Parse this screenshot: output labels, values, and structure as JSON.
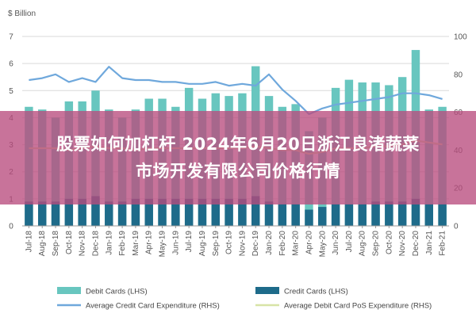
{
  "overlay": {
    "line1": "股票如何加杠杆 2024年6月20日浙江良渚蔬菜",
    "line2": "市场开发有限公司价格行情"
  },
  "colors": {
    "debit": "#68c6bf",
    "credit": "#1e6b8a",
    "avg_credit": "#6fa8dc",
    "avg_debit": "#d8e4a6",
    "grid": "#d9d9d9"
  },
  "chart_data": {
    "type": "bar",
    "title": "",
    "unit_left": "$ Billion",
    "ylim_left": [
      0,
      7
    ],
    "yticks_left": [
      0,
      1,
      2,
      3,
      4,
      5,
      6,
      7
    ],
    "ylim_right": [
      0,
      100
    ],
    "yticks_right": [
      0,
      20,
      40,
      60,
      80,
      100
    ],
    "grid": true,
    "legend_position": "bottom",
    "categories": [
      "Jul-18",
      "Aug-18",
      "Sep-18",
      "Oct-18",
      "Nov-18",
      "Dec-18",
      "Jan-19",
      "Feb-19",
      "Mar-19",
      "Apr-19",
      "May-19",
      "Jun-19",
      "Jul-19",
      "Aug-19",
      "Sep-19",
      "Oct-19",
      "Nov-19",
      "Dec-19",
      "Jan-20",
      "Feb-20",
      "Mar-20",
      "Apr-20",
      "May-20",
      "Jun-20",
      "Jul-20",
      "Aug-20",
      "Sep-20",
      "Oct-20",
      "Nov-20",
      "Dec-20",
      "Jan-21",
      "Feb-21"
    ],
    "tick_labels": [
      "Jul-18",
      "Sep-18",
      "Nov-18",
      "Jan-19",
      "Mar-19",
      "May-19",
      "Jul-19",
      "Sep-19",
      "Nov-19",
      "Jan-20",
      "Mar-20",
      "May-20",
      "Jul-20",
      "Sep-20",
      "Nov-20",
      "Jan-21"
    ],
    "x_tick_labels": [
      "Jul-18",
      "Aug-18",
      "Sep-18",
      "Oct-18",
      "Nov-18",
      "Dec-18",
      "Jan-19",
      "Feb-19",
      "Mar-19",
      "Apr-19",
      "May-19",
      "Jun-19",
      "Jul-19",
      "Aug-19",
      "Sep-19",
      "Oct-19",
      "Nov-19",
      "Dec-19",
      "Jan-20",
      "Feb-20",
      "Mar-20",
      "Apr-20",
      "May-20",
      "Jun-20",
      "Jul-20",
      "Aug-20",
      "Sep-20",
      "Oct-20",
      "Nov-20",
      "Dec-20",
      "Jan-21",
      "Feb-21"
    ],
    "series": [
      {
        "name": "Debit Cards (LHS)",
        "kind": "bar",
        "axis": "left",
        "values": [
          4.4,
          4.3,
          4.0,
          4.6,
          4.6,
          5.0,
          4.3,
          4.0,
          4.3,
          4.7,
          4.7,
          4.4,
          5.1,
          4.7,
          4.9,
          4.8,
          4.9,
          5.9,
          4.8,
          4.4,
          4.5,
          3.5,
          4.0,
          5.1,
          5.4,
          5.3,
          5.3,
          5.2,
          5.5,
          6.5,
          4.3,
          4.4
        ]
      },
      {
        "name": "Credit Cards (LHS)",
        "kind": "bar",
        "axis": "left",
        "values": [
          0.9,
          0.9,
          0.9,
          1.0,
          1.0,
          1.1,
          0.9,
          0.9,
          1.0,
          1.0,
          1.0,
          1.0,
          1.0,
          1.0,
          1.0,
          1.0,
          1.0,
          1.1,
          0.9,
          0.8,
          0.8,
          0.6,
          0.7,
          0.8,
          0.8,
          0.8,
          0.9,
          0.9,
          0.9,
          1.0,
          0.8,
          0.8
        ]
      },
      {
        "name": "Average Credit Card Expenditure (RHS)",
        "kind": "line",
        "axis": "right",
        "values": [
          77,
          78,
          80,
          76,
          78,
          76,
          84,
          78,
          77,
          77,
          76,
          76,
          75,
          75,
          76,
          74,
          75,
          74,
          80,
          72,
          66,
          59,
          62,
          64,
          65,
          66,
          67,
          68,
          70,
          70,
          69,
          67
        ]
      },
      {
        "name": "Average Debit Card PoS Expenditure (RHS)",
        "kind": "line",
        "axis": "right",
        "values": [
          41,
          41,
          41,
          40,
          41,
          42,
          41,
          41,
          40,
          41,
          41,
          41,
          41,
          41,
          41,
          41,
          41,
          42,
          41,
          40,
          40,
          38,
          39,
          41,
          41,
          41,
          42,
          42,
          43,
          45,
          44,
          43
        ]
      }
    ]
  }
}
